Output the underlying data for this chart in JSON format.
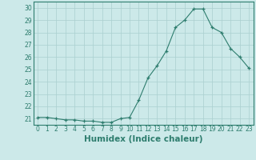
{
  "x": [
    0,
    1,
    2,
    3,
    4,
    5,
    6,
    7,
    8,
    9,
    10,
    11,
    12,
    13,
    14,
    15,
    16,
    17,
    18,
    19,
    20,
    21,
    22,
    23
  ],
  "y": [
    21.1,
    21.1,
    21.0,
    20.9,
    20.9,
    20.8,
    20.8,
    20.7,
    20.7,
    21.0,
    21.1,
    22.5,
    24.3,
    25.3,
    26.5,
    28.4,
    29.0,
    29.9,
    29.9,
    28.4,
    28.0,
    26.7,
    26.0,
    25.1
  ],
  "xlabel": "Humidex (Indice chaleur)",
  "ylim": [
    20.5,
    30.5
  ],
  "xlim": [
    -0.5,
    23.5
  ],
  "yticks": [
    21,
    22,
    23,
    24,
    25,
    26,
    27,
    28,
    29,
    30
  ],
  "xticks": [
    0,
    1,
    2,
    3,
    4,
    5,
    6,
    7,
    8,
    9,
    10,
    11,
    12,
    13,
    14,
    15,
    16,
    17,
    18,
    19,
    20,
    21,
    22,
    23
  ],
  "xtick_labels": [
    "0",
    "1",
    "2",
    "3",
    "4",
    "5",
    "6",
    "7",
    "8",
    "9",
    "10",
    "11",
    "12",
    "13",
    "14",
    "15",
    "16",
    "17",
    "18",
    "19",
    "20",
    "21",
    "22",
    "23"
  ],
  "line_color": "#2e7d6e",
  "marker": "+",
  "background_color": "#cce9e9",
  "grid_color": "#aacfcf",
  "tick_fontsize": 5.5,
  "xlabel_fontsize": 7.5
}
